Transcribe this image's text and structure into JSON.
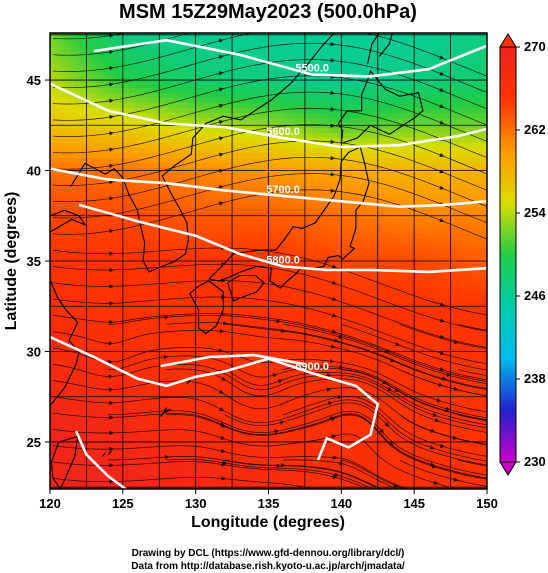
{
  "title": "MSM 15Z29May2023 (500.0hPa)",
  "credits": [
    "Drawing by DCL (https://www.gfd-dennou.org/library/dcl/)",
    "Data from http://database.rish.kyoto-u.ac.jp/arch/jmadata/"
  ],
  "chart_data": {
    "type": "heatmap",
    "title": "MSM 15Z29May2023 (500.0hPa)",
    "xlabel": "Longitude (degrees)",
    "ylabel": "Latitude  (degrees)",
    "xlim": [
      120,
      150
    ],
    "ylim": [
      22.4,
      47.6
    ],
    "x_ticks": [
      120,
      125,
      130,
      135,
      140,
      145,
      150
    ],
    "y_ticks": [
      25,
      30,
      35,
      40,
      45
    ],
    "grid": true,
    "colorbar": {
      "min": 230,
      "max": 270,
      "ticks": [
        230,
        238,
        246,
        254,
        262,
        270
      ],
      "placement": "right",
      "colors": [
        "#cc00cc",
        "#2222cc",
        "#00bbee",
        "#00ccaa",
        "#22cc44",
        "#dddd00",
        "#ff9900",
        "#ff3300",
        "#ee2222"
      ]
    },
    "contours": [
      {
        "label": "5500.0",
        "points": [
          [
            123,
            46.6
          ],
          [
            128,
            47.2
          ],
          [
            133,
            46.4
          ],
          [
            138,
            45.3
          ],
          [
            142,
            45.2
          ],
          [
            146,
            45.6
          ],
          [
            150,
            46.9
          ]
        ]
      },
      {
        "label": "5600.0",
        "points": [
          [
            120,
            44.8
          ],
          [
            124,
            43.3
          ],
          [
            128,
            42.6
          ],
          [
            132,
            42.4
          ],
          [
            136,
            41.8
          ],
          [
            140,
            41.3
          ],
          [
            144,
            41.4
          ],
          [
            148,
            41.9
          ],
          [
            150,
            42.3
          ]
        ]
      },
      {
        "label": "5700.0",
        "points": [
          [
            120,
            40.1
          ],
          [
            124,
            39.5
          ],
          [
            128,
            39.3
          ],
          [
            132,
            38.9
          ],
          [
            136,
            38.6
          ],
          [
            140,
            38.3
          ],
          [
            144,
            38.0
          ],
          [
            147,
            38.1
          ],
          [
            150,
            38.3
          ]
        ]
      },
      {
        "label": "5800.0",
        "points": [
          [
            122,
            38.1
          ],
          [
            126,
            37.2
          ],
          [
            130,
            36.4
          ],
          [
            133,
            35.4
          ],
          [
            136,
            34.7
          ],
          [
            139,
            34.5
          ],
          [
            142,
            34.5
          ],
          [
            146,
            34.4
          ],
          [
            150,
            34.6
          ]
        ]
      },
      {
        "label": "5900.0",
        "points": [
          [
            120,
            30.8
          ],
          [
            123,
            29.7
          ],
          [
            126,
            28.5
          ],
          [
            128,
            28.1
          ],
          [
            130,
            28.6
          ],
          [
            132,
            28.9
          ],
          [
            135,
            29.6
          ],
          [
            138,
            28.8
          ],
          [
            141,
            28.1
          ],
          [
            142.5,
            27.1
          ],
          [
            142.0,
            25.4
          ],
          [
            140.5,
            24.7
          ],
          [
            139,
            25.2
          ],
          [
            138.4,
            24.0
          ]
        ]
      },
      {
        "label": "",
        "points": [
          [
            127.6,
            29.2
          ],
          [
            131,
            29.7
          ],
          [
            134,
            29.8
          ],
          [
            137.5,
            29.3
          ]
        ]
      },
      {
        "label": "",
        "points": [
          [
            125.2,
            22.4
          ],
          [
            124.0,
            23.1
          ],
          [
            122.5,
            24.3
          ],
          [
            121.8,
            25.6
          ]
        ]
      }
    ],
    "temperature_field": {
      "lon": [
        120,
        125,
        130,
        135,
        140,
        145,
        150
      ],
      "lat": [
        47.6,
        45,
        42.5,
        40,
        37.5,
        35,
        32.5,
        30,
        27.5,
        25,
        22.4
      ],
      "values": [
        [
          252,
          247,
          246,
          246,
          246,
          246,
          247
        ],
        [
          254,
          250,
          248,
          247,
          246,
          247,
          248
        ],
        [
          257,
          256,
          254,
          253,
          251,
          252,
          252
        ],
        [
          262,
          262,
          261,
          260,
          259,
          258,
          258
        ],
        [
          264,
          264,
          263,
          263,
          262,
          261,
          261
        ],
        [
          265,
          265,
          265,
          265,
          264,
          264,
          263
        ],
        [
          266,
          265,
          265,
          265,
          265,
          265,
          265
        ],
        [
          267,
          266,
          265,
          265,
          265,
          265,
          265
        ],
        [
          268,
          267,
          266,
          266,
          265,
          265,
          265
        ],
        [
          269,
          268,
          267,
          266,
          266,
          265,
          265
        ],
        [
          269,
          269,
          268,
          267,
          266,
          266,
          265
        ]
      ]
    }
  }
}
